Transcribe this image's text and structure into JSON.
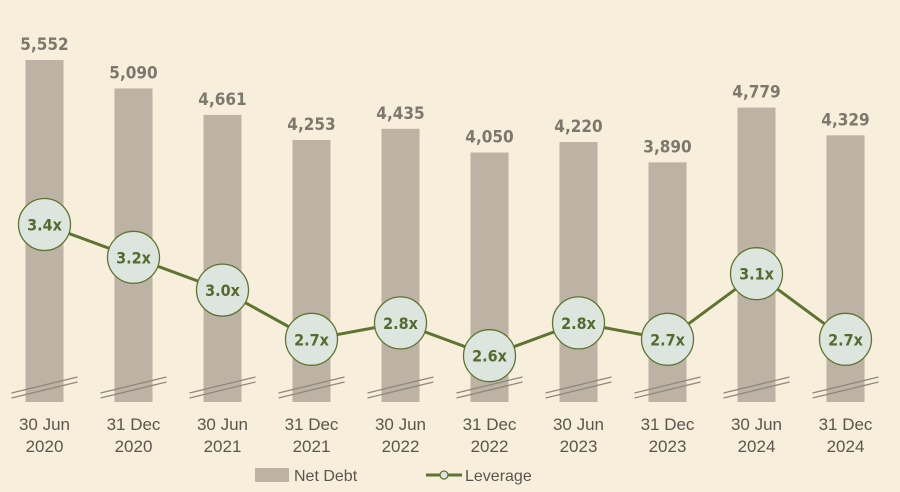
{
  "chart_data": {
    "type": "bar",
    "categories": [
      [
        "30 Jun",
        "2020"
      ],
      [
        "31 Dec",
        "2020"
      ],
      [
        "30 Jun",
        "2021"
      ],
      [
        "31 Dec",
        "2021"
      ],
      [
        "30 Jun",
        "2022"
      ],
      [
        "31 Dec",
        "2022"
      ],
      [
        "30 Jun",
        "2023"
      ],
      [
        "31 Dec",
        "2023"
      ],
      [
        "30 Jun",
        "2024"
      ],
      [
        "31 Dec",
        "2024"
      ]
    ],
    "series": [
      {
        "name": "Net Debt",
        "type": "bar",
        "values": [
          5552,
          5090,
          4661,
          4253,
          4435,
          4050,
          4220,
          3890,
          4779,
          4329
        ],
        "labels": [
          "5,552",
          "5,090",
          "4,661",
          "4,253",
          "4,435",
          "4,050",
          "4,220",
          "3,890",
          "4,779",
          "4,329"
        ]
      },
      {
        "name": "Leverage",
        "type": "line",
        "values": [
          3.4,
          3.2,
          3.0,
          2.7,
          2.8,
          2.6,
          2.8,
          2.7,
          3.1,
          2.7
        ],
        "labels": [
          "3.4x",
          "3.2x",
          "3.0x",
          "2.7x",
          "2.8x",
          "2.6x",
          "2.8x",
          "2.7x",
          "3.1x",
          "2.7x"
        ]
      }
    ],
    "axis_break": true,
    "legend_position": "bottom-center",
    "colors": {
      "background": "#f7eedb",
      "bar": "#bcb3a4",
      "line": "#5f7430",
      "marker_fill": "#dce6df",
      "bar_label": "#7d786e",
      "line_label": "#566a2d",
      "axis_text": "#5b564d"
    }
  }
}
